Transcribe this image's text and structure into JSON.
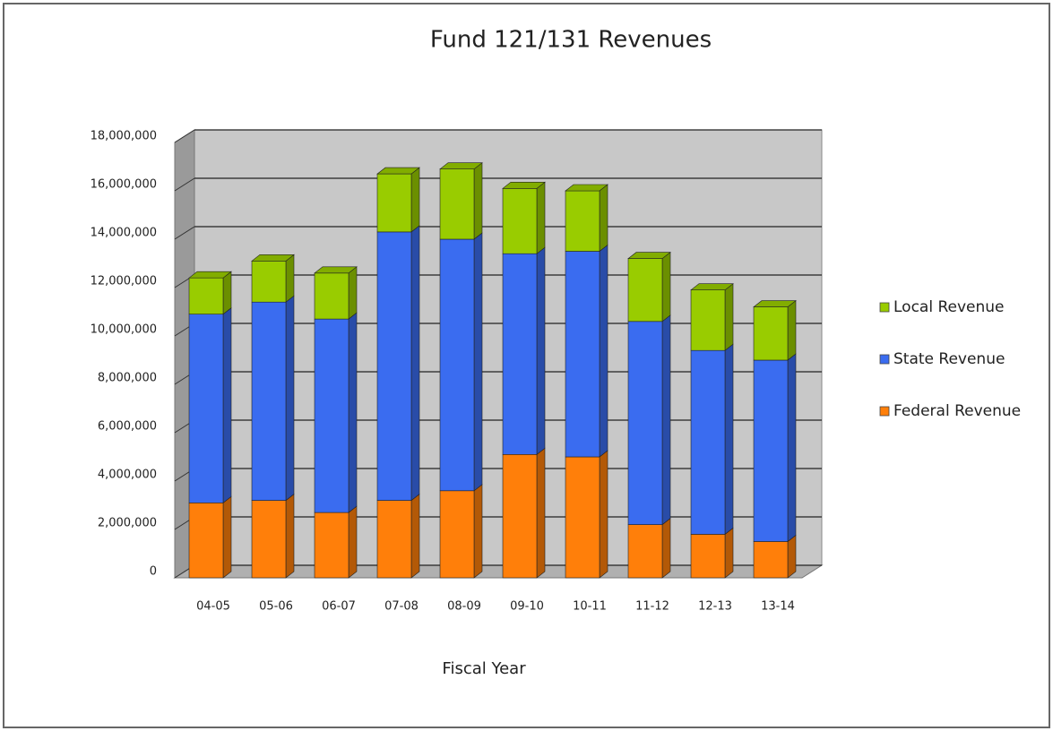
{
  "chart_data": {
    "type": "bar",
    "stacked": true,
    "title": "Fund 121/131 Revenues",
    "x_label": "Fiscal Year",
    "categories": [
      "04-05",
      "05-06",
      "06-07",
      "07-08",
      "08-09",
      "09-10",
      "10-11",
      "11-12",
      "12-13",
      "13-14"
    ],
    "series": [
      {
        "name": "Federal Revenue",
        "color": "#ff7f0a",
        "values": [
          3100000,
          3200000,
          2700000,
          3200000,
          3600000,
          5100000,
          5000000,
          2200000,
          1800000,
          1500000
        ]
      },
      {
        "name": "State Revenue",
        "color": "#3a6cf0",
        "values": [
          7800000,
          8200000,
          8000000,
          11100000,
          10400000,
          8300000,
          8500000,
          8400000,
          7600000,
          7500000
        ]
      },
      {
        "name": "Local Revenue",
        "color": "#99cc00",
        "values": [
          1500000,
          1700000,
          1900000,
          2400000,
          2900000,
          2700000,
          2500000,
          2600000,
          2500000,
          2200000
        ]
      }
    ],
    "ylim": [
      0,
      18000000
    ],
    "yticks": [
      0,
      {
        "value": 2000000,
        "label": "2,000,000"
      },
      {
        "value": 4000000,
        "label": "4,000,000"
      },
      {
        "value": 6000000,
        "label": "6,000,000"
      },
      {
        "value": 8000000,
        "label": "8,000,000"
      },
      {
        "value": 10000000,
        "label": "10,000,000"
      },
      {
        "value": 12000000,
        "label": "12,000,000"
      },
      {
        "value": 14000000,
        "label": "14,000,000"
      },
      {
        "value": 16000000,
        "label": "16,000,000"
      },
      {
        "value": 18000000,
        "label": "18,000,000"
      }
    ],
    "grid": true,
    "legend": "right"
  }
}
